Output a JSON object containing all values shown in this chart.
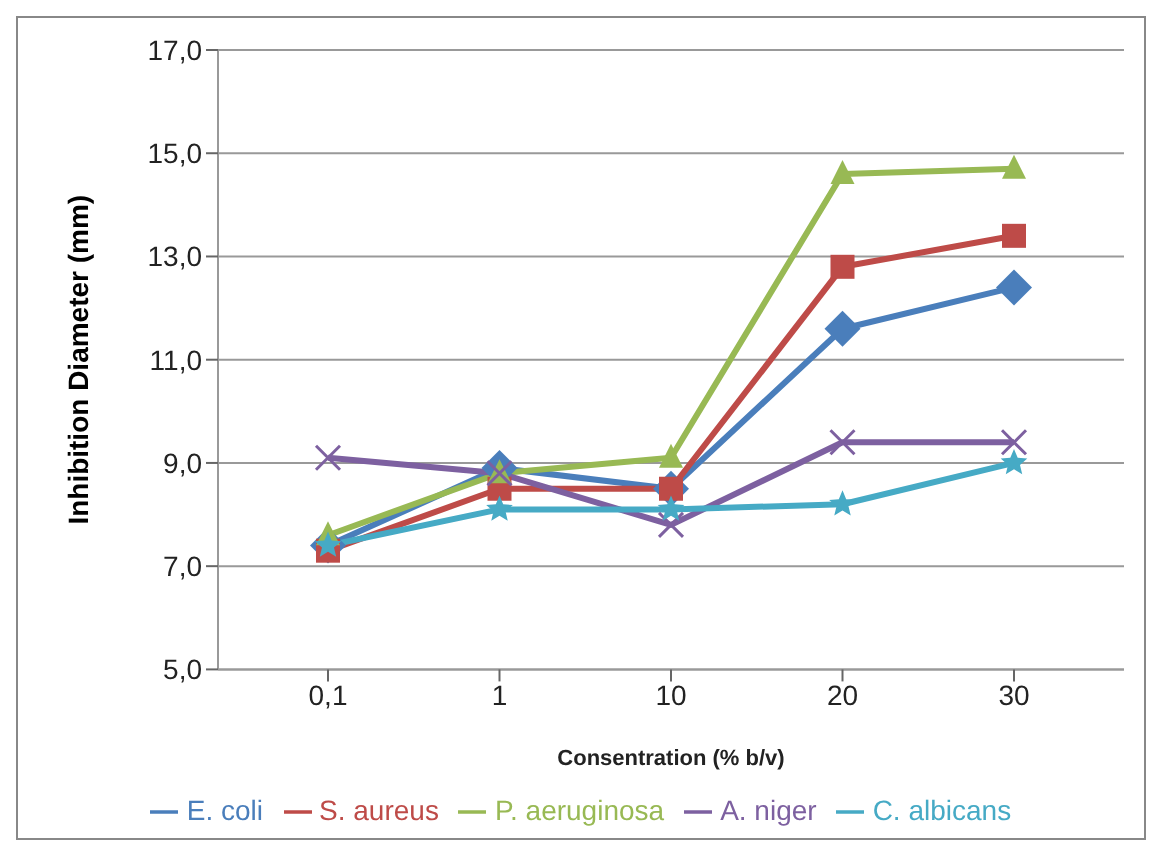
{
  "chart_data": {
    "type": "line",
    "xlabel": "Consentration (% b/v)",
    "ylabel": "Inhibition Diameter (mm)",
    "categories": [
      "0,1",
      "1",
      "10",
      "20",
      "30"
    ],
    "series": [
      {
        "name": "E. coli",
        "color": "#4a7ebb",
        "marker": "diamond",
        "values": [
          7.4,
          8.9,
          8.5,
          11.6,
          12.4
        ]
      },
      {
        "name": "S. aureus",
        "color": "#be4b48",
        "marker": "square",
        "values": [
          7.3,
          8.5,
          8.5,
          12.8,
          13.4
        ]
      },
      {
        "name": "P. aeruginosa",
        "color": "#98b954",
        "marker": "triangle",
        "values": [
          7.6,
          8.8,
          9.1,
          14.6,
          14.7
        ]
      },
      {
        "name": "A. niger",
        "color": "#7d60a0",
        "marker": "cross",
        "values": [
          9.1,
          8.8,
          7.8,
          9.4,
          9.4
        ]
      },
      {
        "name": "C. albicans",
        "color": "#46aac5",
        "marker": "star",
        "values": [
          7.4,
          8.1,
          8.1,
          8.2,
          9.0
        ]
      }
    ],
    "ylim": [
      5,
      17
    ],
    "yticks": [
      {
        "value": 5,
        "label": "5,0"
      },
      {
        "value": 7,
        "label": "7,0"
      },
      {
        "value": 9,
        "label": "9,0"
      },
      {
        "value": 11,
        "label": "11,0"
      },
      {
        "value": 13,
        "label": "13,0"
      },
      {
        "value": 15,
        "label": "15,0"
      },
      {
        "value": 17,
        "label": "17,0"
      }
    ],
    "grid": "y",
    "legend": "bottom"
  }
}
